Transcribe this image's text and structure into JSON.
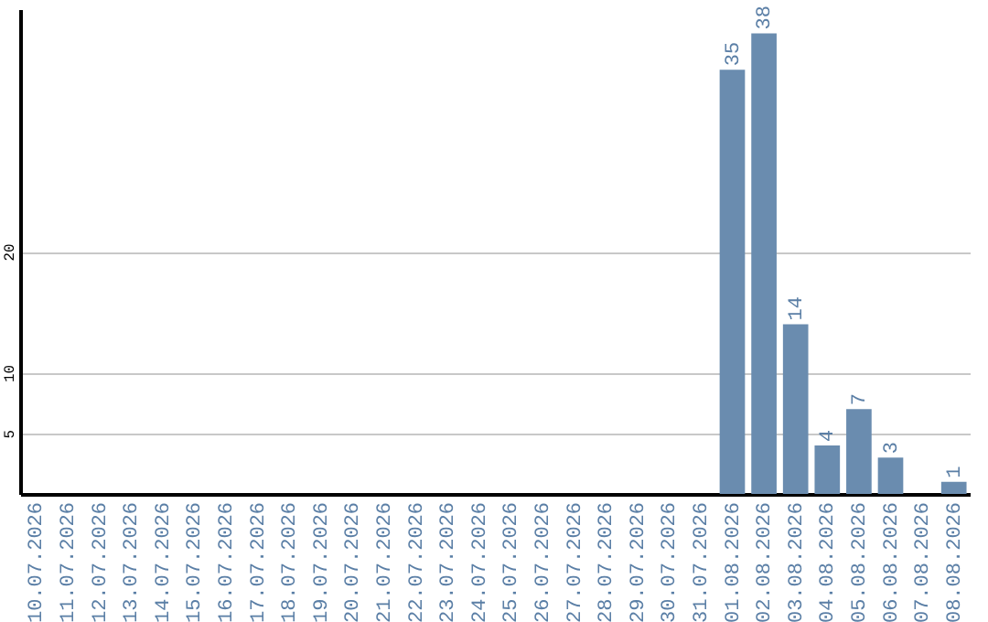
{
  "chart_data": {
    "type": "bar",
    "categories": [
      "10.07.2026",
      "11.07.2026",
      "12.07.2026",
      "13.07.2026",
      "14.07.2026",
      "15.07.2026",
      "16.07.2026",
      "17.07.2026",
      "18.07.2026",
      "19.07.2026",
      "20.07.2026",
      "21.07.2026",
      "22.07.2026",
      "23.07.2026",
      "24.07.2026",
      "25.07.2026",
      "26.07.2026",
      "27.07.2026",
      "28.07.2026",
      "29.07.2026",
      "30.07.2026",
      "31.07.2026",
      "01.08.2026",
      "02.08.2026",
      "03.08.2026",
      "04.08.2026",
      "05.08.2026",
      "06.08.2026",
      "07.08.2026",
      "08.08.2026"
    ],
    "values": [
      0,
      0,
      0,
      0,
      0,
      0,
      0,
      0,
      0,
      0,
      0,
      0,
      0,
      0,
      0,
      0,
      0,
      0,
      0,
      0,
      0,
      0,
      35,
      38,
      14,
      4,
      7,
      3,
      0,
      1
    ],
    "value_labels": [
      null,
      null,
      null,
      null,
      null,
      null,
      null,
      null,
      null,
      null,
      null,
      null,
      null,
      null,
      null,
      null,
      null,
      null,
      null,
      null,
      null,
      null,
      "35",
      "38",
      "14",
      "4",
      "7",
      "3",
      null,
      "1"
    ],
    "color": "#6a8caf",
    "ylim": [
      0,
      40
    ],
    "yticks": [
      5,
      10,
      20
    ],
    "grid": "y"
  }
}
